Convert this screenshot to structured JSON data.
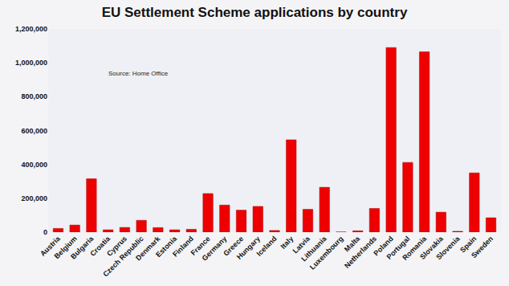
{
  "chart_data": {
    "type": "bar",
    "title": "EU Settlement Scheme applications by country",
    "annotations": [
      "Source: Home Office"
    ],
    "categories": [
      "Austria",
      "Belgium",
      "Bulgaria",
      "Croatia",
      "Cyprus",
      "Czech Republic",
      "Denmark",
      "Estonia",
      "Finland",
      "France",
      "Germany",
      "Greece",
      "Hungary",
      "Iceland",
      "Italy",
      "Latvia",
      "Lithuania",
      "Luxembourg",
      "Malta",
      "Netherlands",
      "Poland",
      "Portugal",
      "Romania",
      "Slovakia",
      "Slovenia",
      "Spain",
      "Sweden"
    ],
    "values": [
      22000,
      42000,
      315000,
      14000,
      28000,
      70000,
      27000,
      14000,
      17000,
      228000,
      160000,
      130000,
      152000,
      10000,
      545000,
      135000,
      265000,
      1000,
      8000,
      140000,
      1090000,
      412000,
      1065000,
      118000,
      5000,
      350000,
      85000
    ],
    "color": "#ee0000",
    "ylim": [
      0,
      1200000
    ],
    "yticks": [
      0,
      {
        "value": 200000,
        "label": "200,000"
      },
      {
        "value": 400000,
        "label": "400,000"
      },
      {
        "value": 600000,
        "label": "600,000"
      },
      {
        "value": 800000,
        "label": "800,000"
      },
      {
        "value": 1000000,
        "label": "1,000,000"
      },
      {
        "value": 1200000,
        "label": "1,200,000"
      }
    ],
    "grid": false
  }
}
